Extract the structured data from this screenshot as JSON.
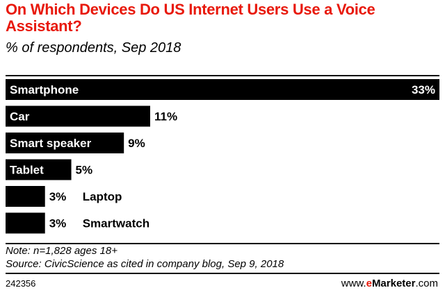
{
  "title": "On Which Devices Do US Internet Users Use a Voice Assistant?",
  "subtitle": "% of respondents, Sep 2018",
  "note": "Note: n=1,828 ages 18+",
  "source": "Source: CivicScience as cited in company blog, Sep 9, 2018",
  "chart_id": "242356",
  "brand": {
    "prefix": "www.",
    "name_accent": "e",
    "name_rest": "Marketer",
    "suffix": ".com"
  },
  "colors": {
    "title": "#e8190c",
    "bar": "#000000"
  },
  "chart_data": {
    "type": "bar",
    "orientation": "horizontal",
    "categories": [
      "Smartphone",
      "Car",
      "Smart speaker",
      "Tablet",
      "Laptop",
      "Smartwatch"
    ],
    "values": [
      33,
      11,
      9,
      5,
      3,
      3
    ],
    "value_labels": [
      "33%",
      "11%",
      "9%",
      "5%",
      "3%",
      "3%"
    ],
    "unit": "%",
    "xlim": [
      0,
      33
    ],
    "grid": false,
    "legend": "none"
  }
}
